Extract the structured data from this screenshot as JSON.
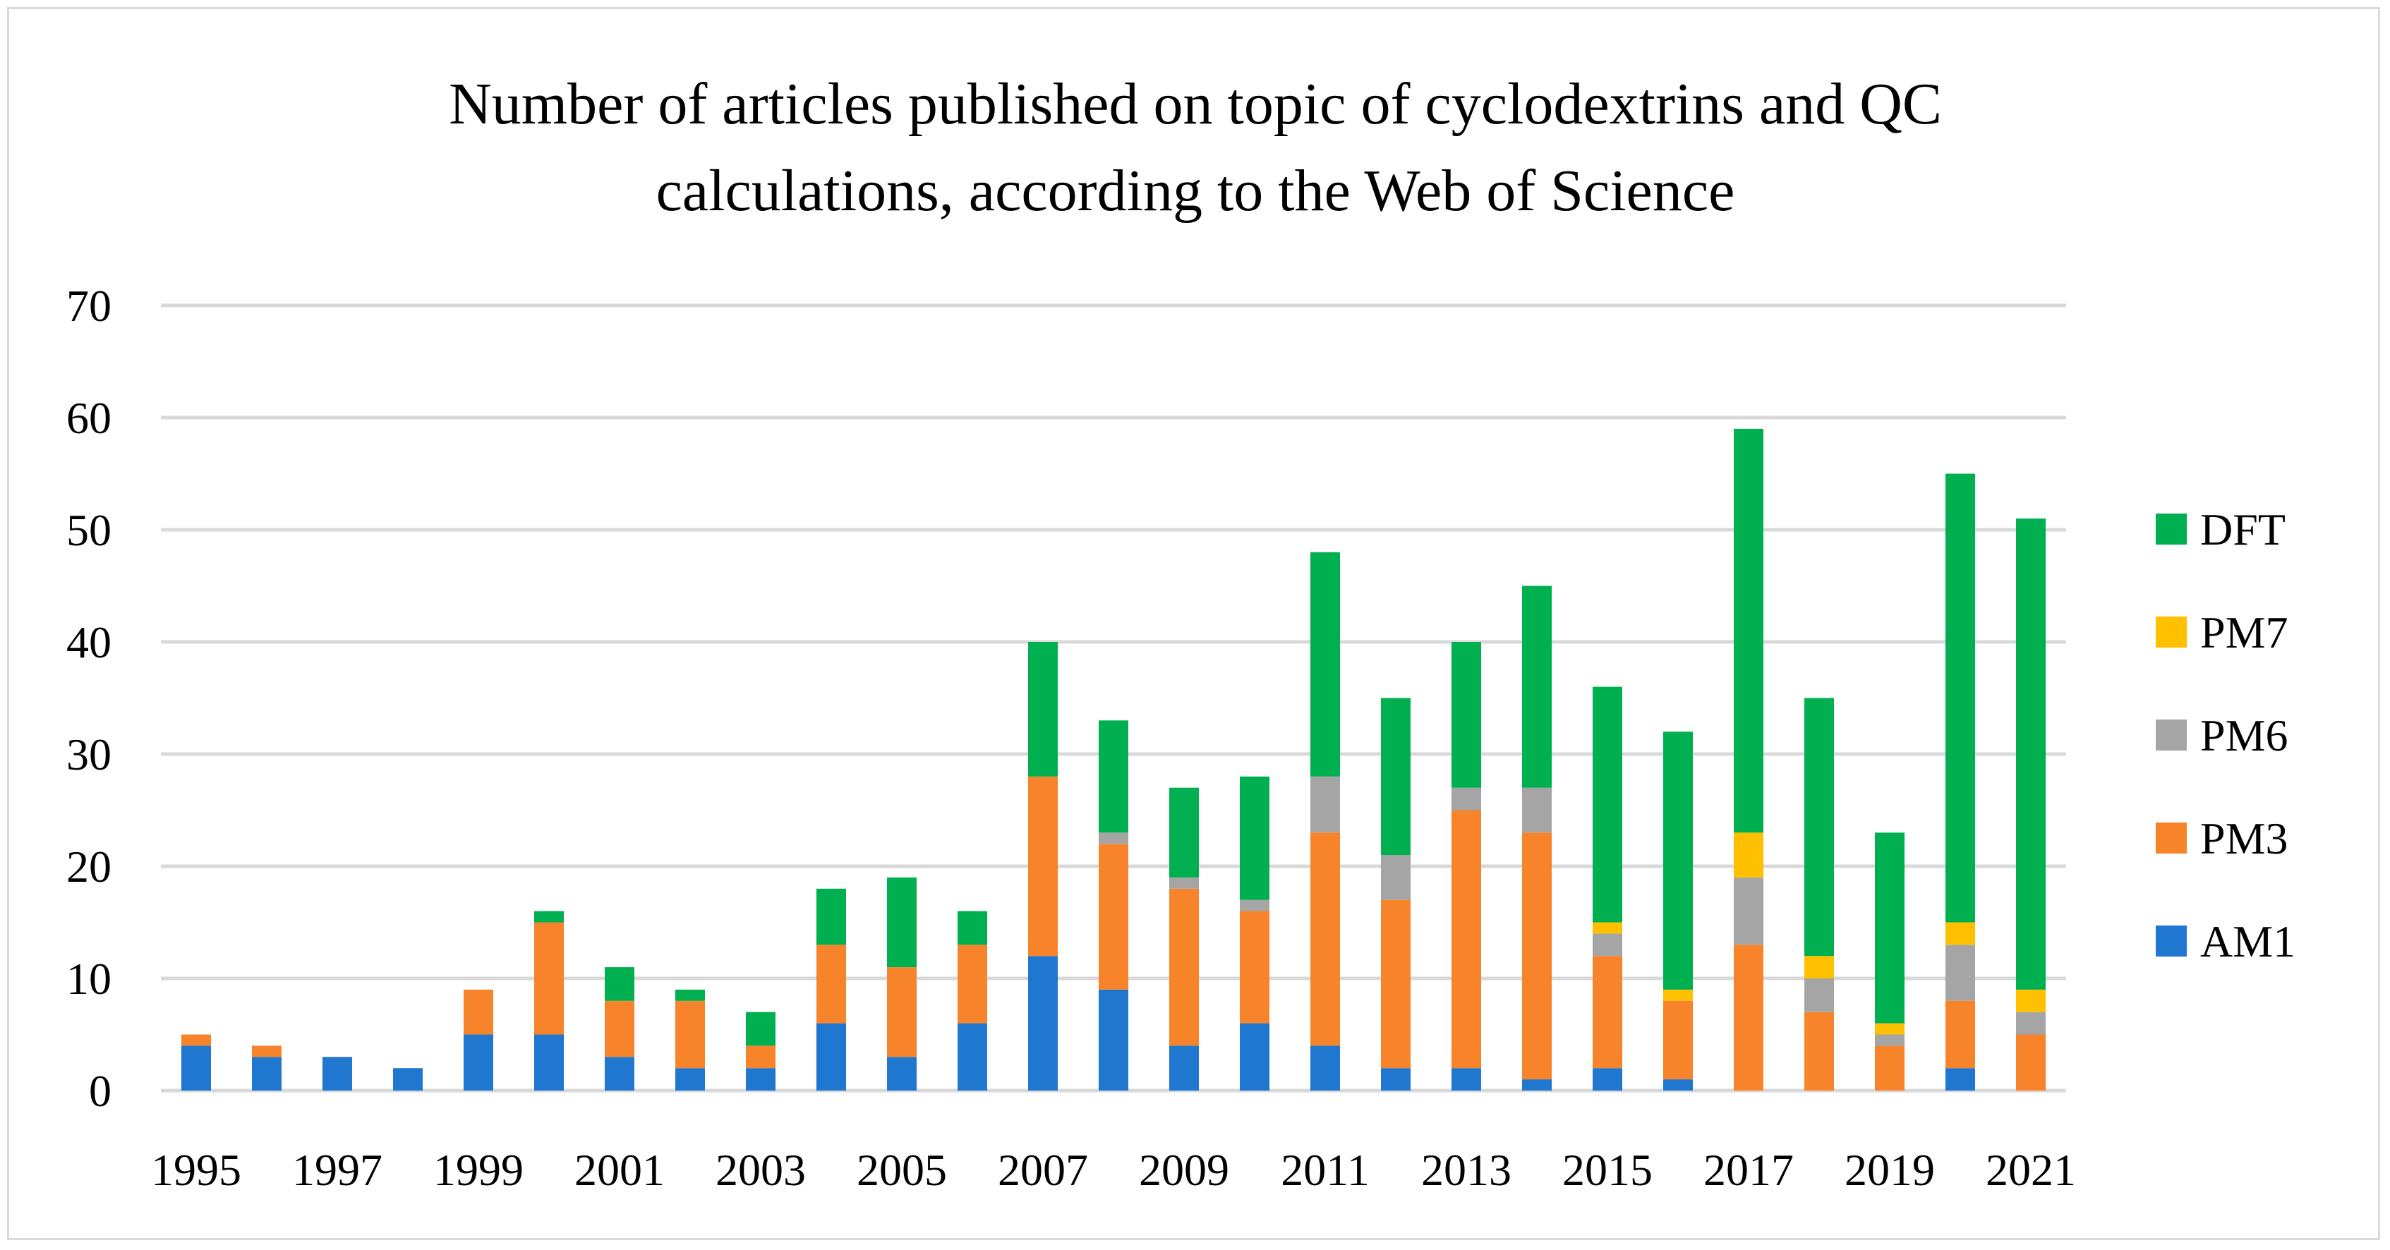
{
  "chart_data": {
    "type": "bar",
    "stacked": true,
    "title_lines": [
      "Number of articles published on topic of cyclodextrins and QC",
      "calculations, according to the Web of Science"
    ],
    "categories": [
      "1995",
      "1996",
      "1997",
      "1998",
      "1999",
      "2000",
      "2001",
      "2002",
      "2003",
      "2004",
      "2005",
      "2006",
      "2007",
      "2008",
      "2009",
      "2010",
      "2011",
      "2012",
      "2013",
      "2014",
      "2015",
      "2016",
      "2017",
      "2018",
      "2019",
      "2020",
      "2021"
    ],
    "x_tick_labels": [
      "1995",
      "1997",
      "1999",
      "2001",
      "2003",
      "2005",
      "2007",
      "2009",
      "2011",
      "2013",
      "2015",
      "2017",
      "2019",
      "2021"
    ],
    "y_ticks": [
      "0",
      "10",
      "20",
      "30",
      "40",
      "50",
      "60",
      "70"
    ],
    "ylim": [
      0,
      70
    ],
    "grid": true,
    "legend_position": "right",
    "series": [
      {
        "name": "AM1",
        "color": "#1f77d0",
        "values": [
          4,
          3,
          3,
          2,
          5,
          5,
          3,
          2,
          2,
          6,
          3,
          6,
          12,
          9,
          4,
          6,
          4,
          2,
          2,
          1,
          2,
          1,
          0,
          0,
          0,
          2,
          0
        ]
      },
      {
        "name": "PM3",
        "color": "#f7842a",
        "values": [
          1,
          1,
          0,
          0,
          4,
          10,
          5,
          6,
          2,
          7,
          8,
          7,
          16,
          13,
          14,
          10,
          19,
          15,
          23,
          22,
          10,
          7,
          13,
          7,
          4,
          6,
          5
        ]
      },
      {
        "name": "PM6",
        "color": "#a5a5a5",
        "values": [
          0,
          0,
          0,
          0,
          0,
          0,
          0,
          0,
          0,
          0,
          0,
          0,
          0,
          1,
          1,
          1,
          5,
          4,
          2,
          4,
          2,
          0,
          6,
          3,
          1,
          5,
          2
        ]
      },
      {
        "name": "PM7",
        "color": "#ffc000",
        "values": [
          0,
          0,
          0,
          0,
          0,
          0,
          0,
          0,
          0,
          0,
          0,
          0,
          0,
          0,
          0,
          0,
          0,
          0,
          0,
          0,
          1,
          1,
          4,
          2,
          1,
          2,
          2
        ]
      },
      {
        "name": "DFT",
        "color": "#00b050",
        "values": [
          0,
          0,
          0,
          0,
          0,
          1,
          3,
          1,
          3,
          5,
          8,
          3,
          12,
          10,
          8,
          11,
          20,
          14,
          13,
          18,
          21,
          23,
          36,
          23,
          17,
          40,
          42
        ]
      }
    ]
  }
}
